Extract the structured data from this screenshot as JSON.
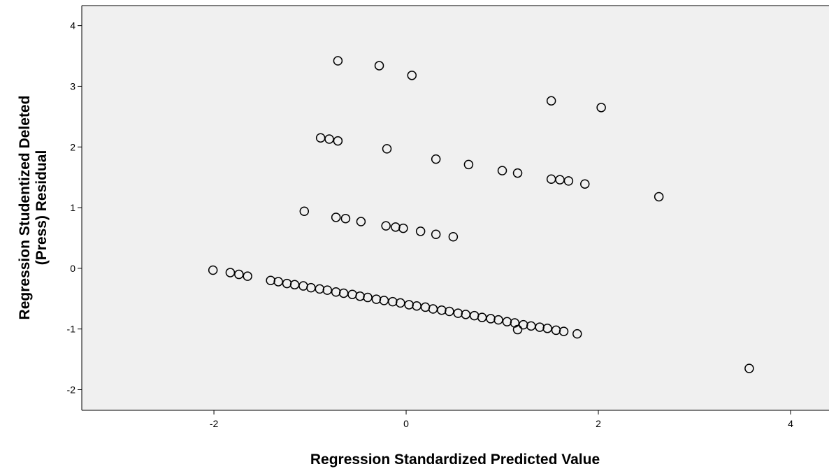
{
  "chart_data": {
    "type": "scatter",
    "xlabel": "Regression Standardized Predicted Value",
    "ylabel_lines": [
      "Regression Studentized Deleted",
      "(Press) Residual"
    ],
    "xlim": [
      -3.375,
      4.4
    ],
    "ylim": [
      -2.34,
      4.33
    ],
    "xticks": [
      -2,
      0,
      2,
      4
    ],
    "yticks": [
      -2,
      -1,
      0,
      1,
      2,
      3,
      4
    ],
    "grid": false,
    "marker_color": "#000000",
    "plot_background": "#f0f0f0",
    "x": [
      -0.71,
      -0.28,
      0.06,
      1.51,
      2.03,
      -0.89,
      -0.8,
      -0.71,
      -0.2,
      0.31,
      0.65,
      1.0,
      1.16,
      1.51,
      1.6,
      1.69,
      1.86,
      2.63,
      -1.06,
      -0.73,
      -0.63,
      -0.47,
      -0.21,
      -0.11,
      -0.03,
      0.15,
      0.31,
      0.49,
      -2.01,
      -1.83,
      -1.74,
      -1.65,
      -1.41,
      -1.33,
      -1.24,
      -1.16,
      -1.07,
      -0.99,
      -0.9,
      -0.82,
      -0.73,
      -0.65,
      -0.56,
      -0.48,
      -0.4,
      -0.31,
      -0.23,
      -0.14,
      -0.06,
      0.03,
      0.11,
      0.2,
      0.28,
      0.37,
      0.45,
      0.54,
      0.62,
      0.71,
      0.79,
      0.88,
      0.96,
      1.05,
      1.13,
      1.22,
      1.3,
      1.39,
      1.47,
      1.56,
      1.64,
      1.78,
      1.16,
      3.57
    ],
    "y": [
      3.42,
      3.34,
      3.18,
      2.76,
      2.65,
      2.15,
      2.13,
      2.1,
      1.97,
      1.8,
      1.71,
      1.61,
      1.57,
      1.47,
      1.46,
      1.44,
      1.39,
      1.18,
      0.94,
      0.84,
      0.82,
      0.77,
      0.7,
      0.68,
      0.66,
      0.61,
      0.56,
      0.52,
      -0.03,
      -0.07,
      -0.1,
      -0.13,
      -0.2,
      -0.22,
      -0.25,
      -0.27,
      -0.29,
      -0.32,
      -0.34,
      -0.36,
      -0.39,
      -0.41,
      -0.43,
      -0.46,
      -0.48,
      -0.51,
      -0.53,
      -0.55,
      -0.57,
      -0.6,
      -0.62,
      -0.64,
      -0.67,
      -0.69,
      -0.71,
      -0.74,
      -0.76,
      -0.78,
      -0.81,
      -0.83,
      -0.85,
      -0.88,
      -0.9,
      -0.93,
      -0.95,
      -0.97,
      -0.99,
      -1.02,
      -1.04,
      -1.08,
      -1.01,
      -1.65
    ]
  }
}
